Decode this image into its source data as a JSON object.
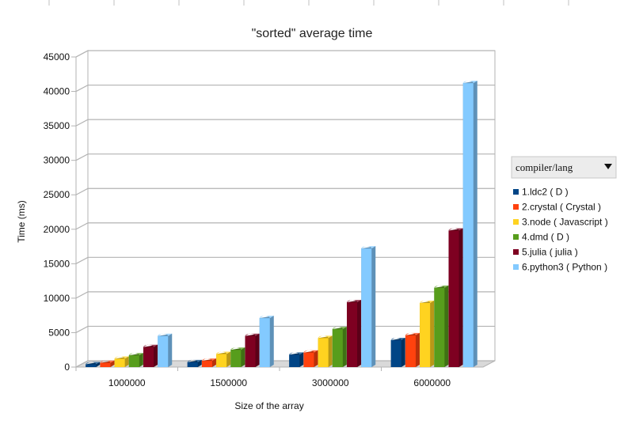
{
  "chart_data": {
    "type": "bar",
    "title": "\"sorted\" average time",
    "xlabel": "Size of the array",
    "ylabel": "Time (ms)",
    "ylim": [
      0,
      45000
    ],
    "yticks": [
      0,
      5000,
      10000,
      15000,
      20000,
      25000,
      30000,
      35000,
      40000,
      45000
    ],
    "grid": true,
    "legend_position": "right",
    "legend_header": "compiler/lang",
    "categories": [
      "1000000",
      "1500000",
      "3000000",
      "6000000"
    ],
    "series": [
      {
        "name": "1.ldc2 ( D )",
        "color": "#004586",
        "values": [
          400,
          700,
          1800,
          3900
        ]
      },
      {
        "name": "2.crystal ( Crystal )",
        "color": "#ff420e",
        "values": [
          600,
          900,
          2100,
          4600
        ]
      },
      {
        "name": "3.node ( Javascript )",
        "color": "#ffd320",
        "values": [
          1200,
          1900,
          4200,
          9300
        ]
      },
      {
        "name": "4.dmd ( D )",
        "color": "#579d1c",
        "values": [
          1700,
          2500,
          5500,
          11500
        ]
      },
      {
        "name": "5.julia ( julia )",
        "color": "#7e0021",
        "values": [
          2900,
          4500,
          9400,
          19800
        ]
      },
      {
        "name": "6.python3 ( Python )",
        "color": "#83caff",
        "values": [
          4500,
          7100,
          17200,
          41200
        ]
      }
    ]
  }
}
